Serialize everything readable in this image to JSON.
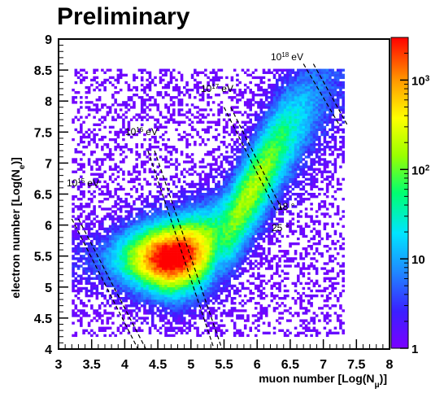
{
  "chart_data": {
    "type": "heatmap",
    "title": "Preliminary",
    "xlabel": {
      "main": "muon number [Log(N",
      "sub": "μ",
      "end": ")]"
    },
    "ylabel": {
      "main": "electron number [Log(N",
      "sub": "e",
      "end": ")]"
    },
    "xlim": [
      3,
      8
    ],
    "ylim": [
      4,
      9
    ],
    "x_ticks": [
      "3",
      "3.5",
      "4",
      "4.5",
      "5",
      "5.5",
      "6",
      "6.5",
      "7",
      "7.5",
      "8"
    ],
    "y_ticks": [
      "4",
      "4.5",
      "5",
      "5.5",
      "6",
      "6.5",
      "7",
      "7.5",
      "8",
      "8.5",
      "9"
    ],
    "colorbar": {
      "scale": "log",
      "range": [
        1,
        3000
      ],
      "tick_labels": [
        {
          "value": 1,
          "base": "1",
          "exp": ""
        },
        {
          "value": 10,
          "base": "10",
          "exp": ""
        },
        {
          "value": 100,
          "base": "10",
          "exp": "2"
        },
        {
          "value": 1000,
          "base": "10",
          "exp": "3"
        }
      ]
    },
    "density_model": {
      "peak": {
        "x": 4.72,
        "y": 5.47,
        "count": 3000
      },
      "ridge": [
        {
          "x": 3.2,
          "y": 5.4
        },
        {
          "x": 3.6,
          "y": 5.45
        },
        {
          "x": 4.0,
          "y": 5.47
        },
        {
          "x": 4.72,
          "y": 5.47
        },
        {
          "x": 5.2,
          "y": 5.6
        },
        {
          "x": 5.6,
          "y": 6.0
        },
        {
          "x": 6.0,
          "y": 6.7
        },
        {
          "x": 6.4,
          "y": 7.4
        },
        {
          "x": 7.2,
          "y": 8.4
        }
      ]
    },
    "energy_lines": [
      {
        "base": "10",
        "exp": "15",
        "unit": "eV",
        "lines": [
          [
            [
              3.2,
              6.1
            ],
            [
              4.2,
              4.0
            ]
          ],
          [
            [
              3.3,
              6.1
            ],
            [
              4.32,
              4.0
            ]
          ]
        ]
      },
      {
        "base": "10",
        "exp": "16",
        "unit": "eV",
        "lines": [
          [
            [
              4.35,
              7.2
            ],
            [
              5.35,
              4.0
            ]
          ],
          [
            [
              4.45,
              7.2
            ],
            [
              5.47,
              4.0
            ]
          ]
        ]
      },
      {
        "base": "10",
        "exp": "17",
        "unit": "eV",
        "lines": [
          [
            [
              5.5,
              7.9
            ],
            [
              6.3,
              6.2
            ]
          ],
          [
            [
              5.6,
              7.9
            ],
            [
              6.4,
              6.2
            ]
          ]
        ]
      },
      {
        "base": "10",
        "exp": "18",
        "unit": "eV",
        "lines": [
          [
            [
              6.7,
              8.6
            ],
            [
              7.25,
              7.6
            ]
          ],
          [
            [
              6.85,
              8.6
            ],
            [
              7.37,
              7.6
            ]
          ]
        ]
      }
    ],
    "angle_labels": [
      "18 °",
      "25 °"
    ]
  }
}
